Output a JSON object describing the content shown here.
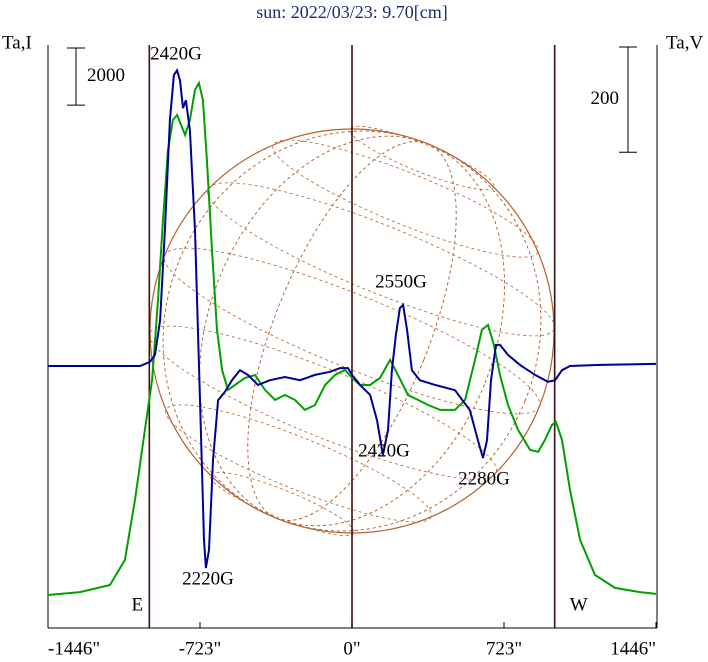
{
  "chart_data": {
    "type": "line",
    "title": "sun: 2022/03/23: 9.70[cm]",
    "ylabel": "Ta,I",
    "y2label": "Ta,V",
    "xlim": [
      -1446,
      1446
    ],
    "xticks": [
      {
        "value": -1446,
        "label": "-1446\""
      },
      {
        "value": -723,
        "label": "-723\""
      },
      {
        "value": 0,
        "label": "0\""
      },
      {
        "value": 723,
        "label": "723\""
      },
      {
        "value": 1446,
        "label": "1446\""
      }
    ],
    "ylim": [
      -1155,
      19250
    ],
    "y2lim": [
      -498,
      610
    ],
    "vlines": [
      -964,
      0,
      964
    ],
    "limb_labels": [
      "E",
      "W"
    ],
    "scale_bars": [
      {
        "value": 2000,
        "axis": "y"
      },
      {
        "value": 200,
        "axis": "y2"
      }
    ],
    "annotations": [
      "2420G",
      "2220G",
      "2550G",
      "2420G",
      "2280G"
    ],
    "series": [
      {
        "color": "#00a000",
        "x": [
          -1446,
          -1294,
          -1151,
          -1080,
          -1032,
          -985,
          -951,
          -923,
          -899,
          -875,
          -852,
          -832,
          -813,
          -794,
          -771,
          -747,
          -728,
          -709,
          -690,
          -666,
          -642,
          -618,
          -590,
          -557,
          -509,
          -461,
          -414,
          -366,
          -319,
          -271,
          -224,
          -176,
          -128,
          -81,
          -33,
          0,
          38,
          86,
          133,
          181,
          219,
          266,
          314,
          362,
          419,
          490,
          538,
          585,
          618,
          647,
          675,
          704,
          742,
          790,
          847,
          885,
          918,
          951,
          970,
          999,
          1037,
          1085,
          1156,
          1251,
          1370,
          1446
        ],
        "values": [
          0,
          100,
          350,
          1230,
          3330,
          5780,
          7530,
          10330,
          13130,
          15580,
          16630,
          16800,
          16450,
          16100,
          16630,
          17680,
          17920,
          17330,
          15230,
          12080,
          9280,
          7880,
          7180,
          7350,
          7600,
          7700,
          7180,
          6830,
          7000,
          6830,
          6480,
          6650,
          7350,
          7700,
          7880,
          7600,
          7350,
          7350,
          7600,
          8230,
          7700,
          7000,
          6830,
          6650,
          6480,
          6480,
          6830,
          8230,
          9280,
          9450,
          8750,
          7700,
          6650,
          5780,
          5080,
          5010,
          5430,
          5950,
          6060,
          5430,
          3680,
          1930,
          700,
          250,
          100,
          40
        ]
      },
      {
        "color": "#000099",
        "axis": "y2",
        "x": [
          -1446,
          -1199,
          -1008,
          -961,
          -937,
          -913,
          -890,
          -866,
          -847,
          -832,
          -818,
          -804,
          -790,
          -771,
          -747,
          -723,
          -704,
          -695,
          -680,
          -661,
          -637,
          -604,
          -571,
          -533,
          -495,
          -447,
          -390,
          -319,
          -247,
          -176,
          -105,
          -57,
          -19,
          0,
          38,
          86,
          119,
          147,
          171,
          190,
          209,
          228,
          243,
          262,
          285,
          323,
          395,
          490,
          561,
          599,
          623,
          642,
          661,
          685,
          704,
          742,
          799,
          871,
          932,
          966,
          999,
          1037,
          1180,
          1446
        ],
        "values": [
          0,
          0,
          0,
          8,
          21,
          87,
          258,
          467,
          553,
          562,
          543,
          490,
          505,
          448,
          258,
          -65,
          -331,
          -384,
          -350,
          -179,
          -65,
          -49,
          -27,
          -8,
          -17,
          -36,
          -27,
          -21,
          -27,
          -17,
          -11,
          -4,
          -4,
          -17,
          -36,
          -55,
          -103,
          -169,
          -122,
          -8,
          59,
          110,
          116,
          68,
          -8,
          -27,
          -36,
          -46,
          -84,
          -141,
          -175,
          -141,
          -27,
          40,
          40,
          21,
          2,
          -17,
          -30,
          -27,
          -8,
          0,
          2,
          4
        ]
      }
    ]
  }
}
